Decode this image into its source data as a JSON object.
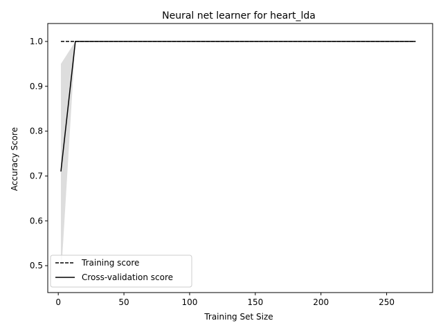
{
  "chart_data": {
    "type": "line",
    "title": "Neural net learner for heart_lda",
    "xlabel": "Training Set Size",
    "ylabel": "Accuracy Score",
    "xlim": [
      -8,
      285
    ],
    "ylim": [
      0.44,
      1.04
    ],
    "x_ticks": [
      0,
      50,
      100,
      150,
      200,
      250
    ],
    "y_ticks": [
      0.5,
      0.6,
      0.7,
      0.8,
      0.9,
      1.0
    ],
    "x_tick_labels": [
      "0",
      "50",
      "100",
      "150",
      "200",
      "250"
    ],
    "y_tick_labels": [
      "0.5",
      "0.6",
      "0.7",
      "0.8",
      "0.9",
      "1.0"
    ],
    "grid": false,
    "legend_position": "lower-left",
    "series": [
      {
        "name": "Training score",
        "style": "dashed",
        "color": "#000000",
        "x": [
          2,
          13,
          272
        ],
        "y": [
          1.0,
          1.0,
          1.0
        ],
        "band_upper": [
          1.0,
          1.0,
          1.0
        ],
        "band_lower": [
          1.0,
          1.0,
          1.0
        ]
      },
      {
        "name": "Cross-validation score",
        "style": "solid",
        "color": "#000000",
        "x": [
          2,
          13,
          272
        ],
        "y": [
          0.71,
          1.0,
          1.0
        ],
        "band_upper": [
          0.95,
          1.0,
          1.0
        ],
        "band_lower": [
          0.47,
          1.0,
          1.0
        ]
      }
    ],
    "band_color": "#dddddd"
  }
}
